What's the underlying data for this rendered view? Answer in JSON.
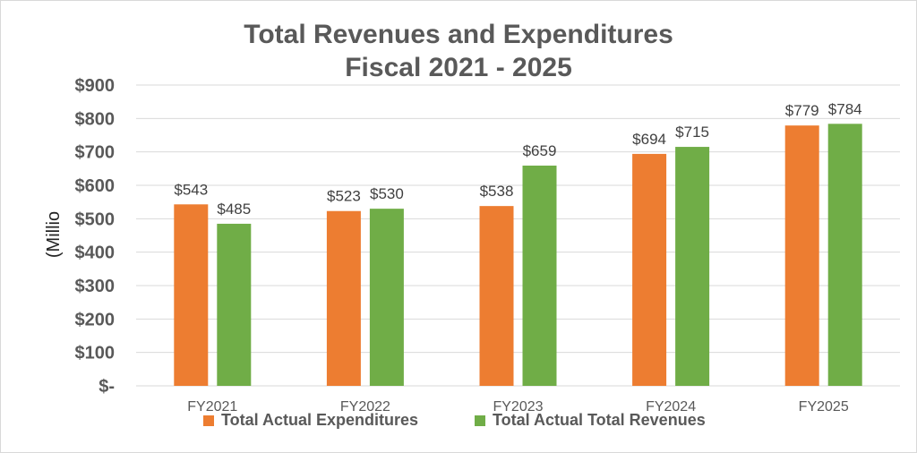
{
  "chart_data": {
    "type": "bar",
    "title": "Total Revenues and Expenditures",
    "subtitle": "Fiscal 2021 - 2025",
    "ylabel": "(Millio",
    "xlabel": "",
    "categories": [
      "FY2021",
      "FY2022",
      "FY2023",
      "FY2024",
      "FY2025"
    ],
    "ylim": [
      0,
      900
    ],
    "yticks": [
      "$-",
      "$100",
      "$200",
      "$300",
      "$400",
      "$500",
      "$600",
      "$700",
      "$800",
      "$900"
    ],
    "ytick_values": [
      0,
      100,
      200,
      300,
      400,
      500,
      600,
      700,
      800,
      900
    ],
    "grid": true,
    "legend_position": "bottom",
    "series": [
      {
        "name": "Total Actual Expenditures",
        "color": "#ed7d31",
        "values": [
          543,
          523,
          538,
          694,
          779
        ],
        "labels": [
          "$543",
          "$523",
          "$538",
          "$694",
          "$779"
        ]
      },
      {
        "name": "Total Actual Total Revenues",
        "color": "#70ad47",
        "values": [
          485,
          530,
          659,
          715,
          784
        ],
        "labels": [
          "$485",
          "$530",
          "$659",
          "$715",
          "$784"
        ]
      }
    ]
  }
}
